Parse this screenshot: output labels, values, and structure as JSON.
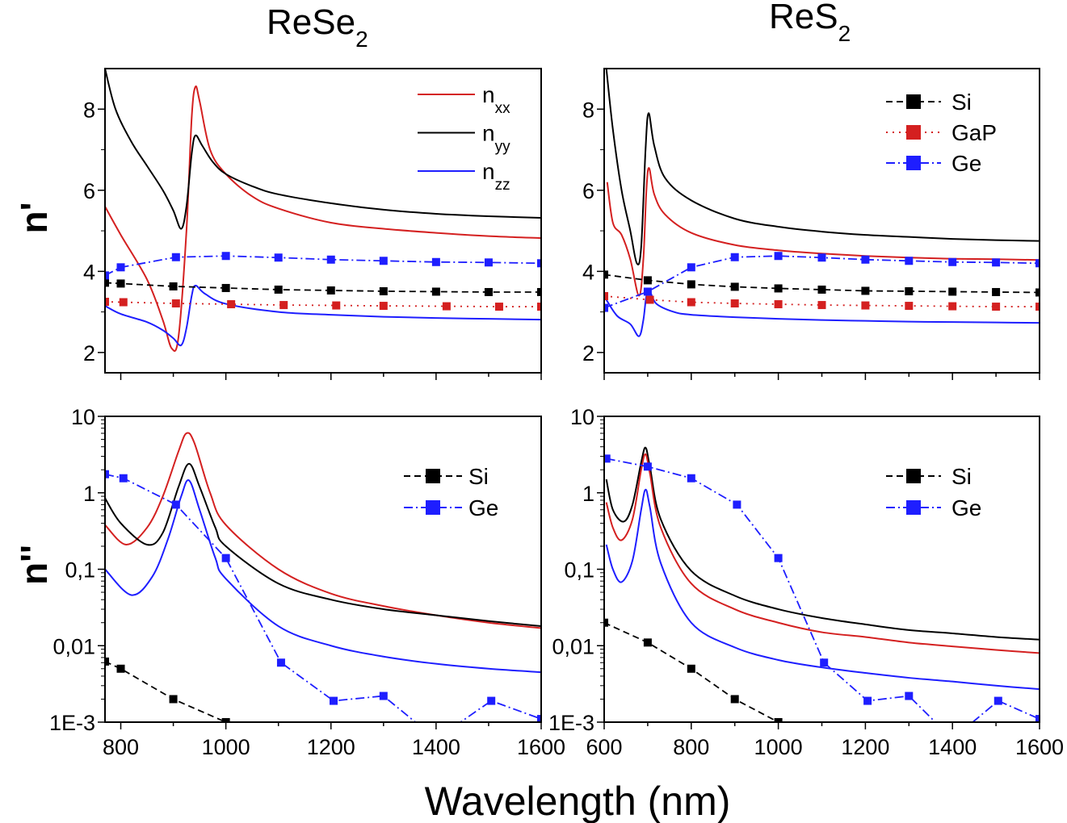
{
  "titles": [
    {
      "main": "ReSe",
      "sub": "2"
    },
    {
      "main": "ReS",
      "sub": "2"
    }
  ],
  "ylabels": {
    "top": "n'",
    "bottom": "n''"
  },
  "xlabel": "Wavelength (nm)",
  "colors": {
    "nxx": "#d42020",
    "nyy": "#000000",
    "nzz": "#1e1eff",
    "Si": "#000000",
    "GaP": "#d42020",
    "Ge": "#1e1eff"
  },
  "chart_data": [
    {
      "type": "line",
      "panel": "ReSe2 n'",
      "scale": "linear",
      "xlim": [
        770,
        1600
      ],
      "ylim": [
        1.5,
        9
      ],
      "xticks": [
        800,
        900,
        1000,
        1100,
        1200,
        1300,
        1400,
        1500,
        1600
      ],
      "yticks": [
        {
          "v": 2,
          "label": "2"
        },
        {
          "v": 4,
          "label": "4"
        },
        {
          "v": 6,
          "label": "6"
        },
        {
          "v": 8,
          "label": "8"
        }
      ],
      "xticklabels": [],
      "legend": {
        "placement": "top-right",
        "entries": [
          {
            "key": "nxx",
            "main": "n",
            "sub": "xx"
          },
          {
            "key": "nyy",
            "main": "n",
            "sub": "yy"
          },
          {
            "key": "nzz",
            "main": "n",
            "sub": "zz"
          }
        ]
      },
      "series": [
        {
          "key": "nxx",
          "style": "solid",
          "x": [
            770,
            800,
            850,
            880,
            897,
            910,
            925,
            935,
            942,
            950,
            970,
            1000,
            1050,
            1100,
            1200,
            1300,
            1400,
            1500,
            1600
          ],
          "y": [
            5.6,
            4.9,
            3.8,
            2.8,
            2.1,
            2.4,
            5.0,
            7.8,
            8.55,
            8.2,
            7.0,
            6.4,
            5.85,
            5.55,
            5.2,
            5.05,
            4.95,
            4.87,
            4.82
          ]
        },
        {
          "key": "nyy",
          "style": "solid",
          "x": [
            770,
            790,
            820,
            850,
            880,
            900,
            915,
            925,
            935,
            942,
            955,
            975,
            1000,
            1050,
            1100,
            1200,
            1300,
            1400,
            1500,
            1600
          ],
          "y": [
            9.0,
            8.0,
            7.2,
            6.6,
            6.0,
            5.5,
            5.05,
            5.6,
            6.9,
            7.35,
            7.1,
            6.7,
            6.4,
            6.1,
            5.9,
            5.68,
            5.52,
            5.42,
            5.36,
            5.32
          ]
        },
        {
          "key": "nzz",
          "style": "solid",
          "x": [
            770,
            800,
            850,
            880,
            900,
            915,
            925,
            935,
            942,
            960,
            1000,
            1100,
            1200,
            1300,
            1400,
            1500,
            1600
          ],
          "y": [
            3.15,
            2.95,
            2.75,
            2.55,
            2.35,
            2.18,
            2.6,
            3.4,
            3.65,
            3.45,
            3.2,
            3.0,
            2.93,
            2.88,
            2.85,
            2.83,
            2.81
          ]
        },
        {
          "key": "Si",
          "style": "dash",
          "markers": true,
          "x": [
            770,
            800,
            900,
            1000,
            1100,
            1200,
            1300,
            1400,
            1500,
            1600
          ],
          "y": [
            3.72,
            3.7,
            3.63,
            3.59,
            3.55,
            3.53,
            3.51,
            3.5,
            3.49,
            3.49
          ]
        },
        {
          "key": "GaP",
          "style": "dot",
          "markers": true,
          "x": [
            770,
            805,
            905,
            1010,
            1110,
            1210,
            1300,
            1420,
            1520,
            1600
          ],
          "y": [
            3.25,
            3.24,
            3.21,
            3.19,
            3.17,
            3.16,
            3.15,
            3.14,
            3.13,
            3.13
          ]
        },
        {
          "key": "Ge",
          "style": "dashdot",
          "markers": true,
          "x": [
            770,
            800,
            905,
            1000,
            1100,
            1200,
            1300,
            1400,
            1500,
            1600
          ],
          "y": [
            3.9,
            4.1,
            4.35,
            4.38,
            4.34,
            4.29,
            4.26,
            4.23,
            4.22,
            4.2
          ]
        }
      ]
    },
    {
      "type": "line",
      "panel": "ReS2 n'",
      "scale": "linear",
      "xlim": [
        600,
        1600
      ],
      "ylim": [
        1.5,
        9
      ],
      "xticks": [
        600,
        700,
        800,
        900,
        1000,
        1100,
        1200,
        1300,
        1400,
        1500,
        1600
      ],
      "yticks": [
        {
          "v": 2,
          "label": "2"
        },
        {
          "v": 4,
          "label": "4"
        },
        {
          "v": 6,
          "label": "6"
        },
        {
          "v": 8,
          "label": "8"
        }
      ],
      "xticklabels": [],
      "legend": {
        "placement": "top-right",
        "entries": [
          {
            "key": "Si",
            "main": "Si",
            "sub": ""
          },
          {
            "key": "GaP",
            "main": "GaP",
            "sub": ""
          },
          {
            "key": "Ge",
            "main": "Ge",
            "sub": ""
          }
        ]
      },
      "series": [
        {
          "key": "nyy",
          "style": "solid",
          "x": [
            605,
            620,
            640,
            660,
            675,
            685,
            695,
            702,
            715,
            740,
            800,
            900,
            1000,
            1100,
            1200,
            1300,
            1400,
            1500,
            1600
          ],
          "y": [
            9.0,
            7.5,
            6.0,
            5.0,
            4.2,
            4.6,
            7.0,
            7.9,
            7.1,
            6.3,
            5.75,
            5.3,
            5.1,
            4.98,
            4.9,
            4.85,
            4.8,
            4.77,
            4.75
          ]
        },
        {
          "key": "nxx",
          "style": "solid",
          "x": [
            607,
            620,
            640,
            660,
            680,
            690,
            697,
            703,
            715,
            740,
            800,
            900,
            1000,
            1100,
            1200,
            1300,
            1400,
            1500,
            1600
          ],
          "y": [
            6.2,
            5.2,
            4.9,
            4.3,
            3.4,
            4.3,
            6.0,
            6.55,
            5.9,
            5.4,
            4.95,
            4.65,
            4.52,
            4.44,
            4.38,
            4.34,
            4.31,
            4.3,
            4.28
          ]
        },
        {
          "key": "nzz",
          "style": "solid",
          "x": [
            605,
            630,
            660,
            680,
            690,
            697,
            705,
            720,
            760,
            800,
            900,
            1000,
            1100,
            1200,
            1300,
            1400,
            1500,
            1600
          ],
          "y": [
            3.3,
            2.9,
            2.7,
            2.4,
            2.8,
            3.4,
            3.5,
            3.2,
            3.0,
            2.93,
            2.87,
            2.83,
            2.8,
            2.78,
            2.76,
            2.75,
            2.74,
            2.73
          ]
        },
        {
          "key": "Si",
          "style": "dash",
          "markers": true,
          "x": [
            600,
            700,
            800,
            900,
            1000,
            1100,
            1200,
            1300,
            1400,
            1500,
            1600
          ],
          "y": [
            3.92,
            3.78,
            3.68,
            3.62,
            3.58,
            3.55,
            3.52,
            3.51,
            3.5,
            3.49,
            3.48
          ]
        },
        {
          "key": "GaP",
          "style": "dot",
          "markers": true,
          "x": [
            600,
            705,
            800,
            900,
            1000,
            1100,
            1200,
            1300,
            1400,
            1500,
            1600
          ],
          "y": [
            3.39,
            3.3,
            3.24,
            3.21,
            3.19,
            3.17,
            3.16,
            3.15,
            3.14,
            3.13,
            3.13
          ]
        },
        {
          "key": "Ge",
          "style": "dashdot",
          "markers": true,
          "x": [
            600,
            700,
            800,
            900,
            1000,
            1100,
            1200,
            1300,
            1400,
            1500,
            1600
          ],
          "y": [
            3.1,
            3.5,
            4.1,
            4.35,
            4.38,
            4.34,
            4.29,
            4.26,
            4.23,
            4.22,
            4.2
          ]
        }
      ]
    },
    {
      "type": "line",
      "panel": "ReSe2 n''",
      "scale": "log",
      "xlim": [
        770,
        1600
      ],
      "ylim": [
        0.001,
        10
      ],
      "xticks": [
        800,
        900,
        1000,
        1100,
        1200,
        1300,
        1400,
        1500,
        1600
      ],
      "yticks": [
        {
          "v": 0.001,
          "label": "1E-3"
        },
        {
          "v": 0.01,
          "label": "0,01"
        },
        {
          "v": 0.1,
          "label": "0,1"
        },
        {
          "v": 1,
          "label": "1"
        },
        {
          "v": 10,
          "label": "10"
        }
      ],
      "xticklabels": [
        "800",
        "1000",
        "1200",
        "1400",
        "1600"
      ],
      "legend": {
        "placement": "top-right",
        "entries": [
          {
            "key": "Si",
            "main": "Si",
            "sub": ""
          },
          {
            "key": "Ge",
            "main": "Ge",
            "sub": ""
          }
        ]
      },
      "series": [
        {
          "key": "nxx",
          "style": "solid",
          "x": [
            770,
            810,
            850,
            880,
            910,
            925,
            940,
            970,
            1000,
            1100,
            1200,
            1300,
            1400,
            1500,
            1600
          ],
          "y": [
            0.38,
            0.21,
            0.35,
            0.9,
            3.5,
            6.0,
            4.5,
            1.0,
            0.38,
            0.1,
            0.048,
            0.033,
            0.025,
            0.02,
            0.017
          ]
        },
        {
          "key": "nyy",
          "style": "solid",
          "x": [
            770,
            800,
            850,
            880,
            910,
            930,
            950,
            980,
            1000,
            1100,
            1200,
            1300,
            1400,
            1500,
            1600
          ],
          "y": [
            0.85,
            0.4,
            0.21,
            0.3,
            1.2,
            2.4,
            1.2,
            0.35,
            0.2,
            0.065,
            0.04,
            0.03,
            0.025,
            0.021,
            0.018
          ]
        },
        {
          "key": "nzz",
          "style": "solid",
          "x": [
            770,
            820,
            860,
            890,
            915,
            930,
            950,
            980,
            1000,
            1100,
            1200,
            1300,
            1400,
            1500,
            1600
          ],
          "y": [
            0.1,
            0.046,
            0.08,
            0.25,
            0.9,
            1.45,
            0.6,
            0.14,
            0.075,
            0.018,
            0.01,
            0.0072,
            0.0058,
            0.005,
            0.0045
          ]
        },
        {
          "key": "Si",
          "style": "dash",
          "markers": true,
          "x": [
            770,
            800,
            900,
            1000,
            1100
          ],
          "y": [
            0.0062,
            0.005,
            0.002,
            0.001,
            0.0004
          ]
        },
        {
          "key": "Ge",
          "style": "dashdot",
          "markers": true,
          "x": [
            770,
            805,
            905,
            1000,
            1105,
            1205,
            1300,
            1400,
            1505,
            1600
          ],
          "y": [
            1.75,
            1.55,
            0.7,
            0.14,
            0.006,
            0.0019,
            0.0022,
            0.0006,
            0.0019,
            0.0011
          ]
        }
      ]
    },
    {
      "type": "line",
      "panel": "ReS2 n''",
      "scale": "log",
      "xlim": [
        600,
        1600
      ],
      "ylim": [
        0.001,
        10
      ],
      "xticks": [
        600,
        700,
        800,
        900,
        1000,
        1100,
        1200,
        1300,
        1400,
        1500,
        1600
      ],
      "yticks": [
        {
          "v": 0.001,
          "label": "1E-3"
        },
        {
          "v": 0.01,
          "label": "0,01"
        },
        {
          "v": 0.1,
          "label": "0,1"
        },
        {
          "v": 1,
          "label": "1"
        },
        {
          "v": 10,
          "label": "10"
        }
      ],
      "xticklabels": [
        "600",
        "800",
        "1000",
        "1200",
        "1400",
        "1600"
      ],
      "legend": {
        "placement": "top-right",
        "entries": [
          {
            "key": "Si",
            "main": "Si",
            "sub": ""
          },
          {
            "key": "Ge",
            "main": "Ge",
            "sub": ""
          }
        ]
      },
      "series": [
        {
          "key": "nyy",
          "style": "solid",
          "x": [
            605,
            620,
            645,
            665,
            685,
            695,
            705,
            730,
            800,
            900,
            1000,
            1100,
            1200,
            1300,
            1400,
            1500,
            1600
          ],
          "y": [
            1.5,
            0.6,
            0.42,
            0.7,
            2.5,
            3.9,
            2.2,
            0.45,
            0.095,
            0.045,
            0.03,
            0.023,
            0.019,
            0.016,
            0.0145,
            0.013,
            0.012
          ]
        },
        {
          "key": "nxx",
          "style": "solid",
          "x": [
            605,
            620,
            640,
            665,
            685,
            695,
            705,
            730,
            800,
            900,
            1000,
            1100,
            1200,
            1300,
            1400,
            1500,
            1600
          ],
          "y": [
            0.75,
            0.35,
            0.24,
            0.45,
            2.0,
            3.2,
            1.8,
            0.35,
            0.065,
            0.03,
            0.02,
            0.015,
            0.013,
            0.011,
            0.0098,
            0.0088,
            0.008
          ]
        },
        {
          "key": "nzz",
          "style": "solid",
          "x": [
            605,
            620,
            640,
            665,
            685,
            695,
            705,
            730,
            800,
            900,
            1000,
            1100,
            1200,
            1300,
            1400,
            1500,
            1600
          ],
          "y": [
            0.21,
            0.1,
            0.068,
            0.13,
            0.6,
            1.1,
            0.65,
            0.12,
            0.02,
            0.0095,
            0.0065,
            0.0052,
            0.0044,
            0.0038,
            0.0034,
            0.003,
            0.0027
          ]
        },
        {
          "key": "Si",
          "style": "dash",
          "markers": true,
          "x": [
            600,
            700,
            800,
            900,
            1000,
            1100
          ],
          "y": [
            0.02,
            0.011,
            0.005,
            0.002,
            0.001,
            0.0004
          ]
        },
        {
          "key": "Ge",
          "style": "dashdot",
          "markers": true,
          "x": [
            605,
            700,
            800,
            905,
            1000,
            1105,
            1205,
            1300,
            1400,
            1505,
            1600
          ],
          "y": [
            2.8,
            2.2,
            1.55,
            0.7,
            0.14,
            0.006,
            0.0019,
            0.0022,
            0.0006,
            0.0019,
            0.0011
          ]
        }
      ]
    }
  ]
}
